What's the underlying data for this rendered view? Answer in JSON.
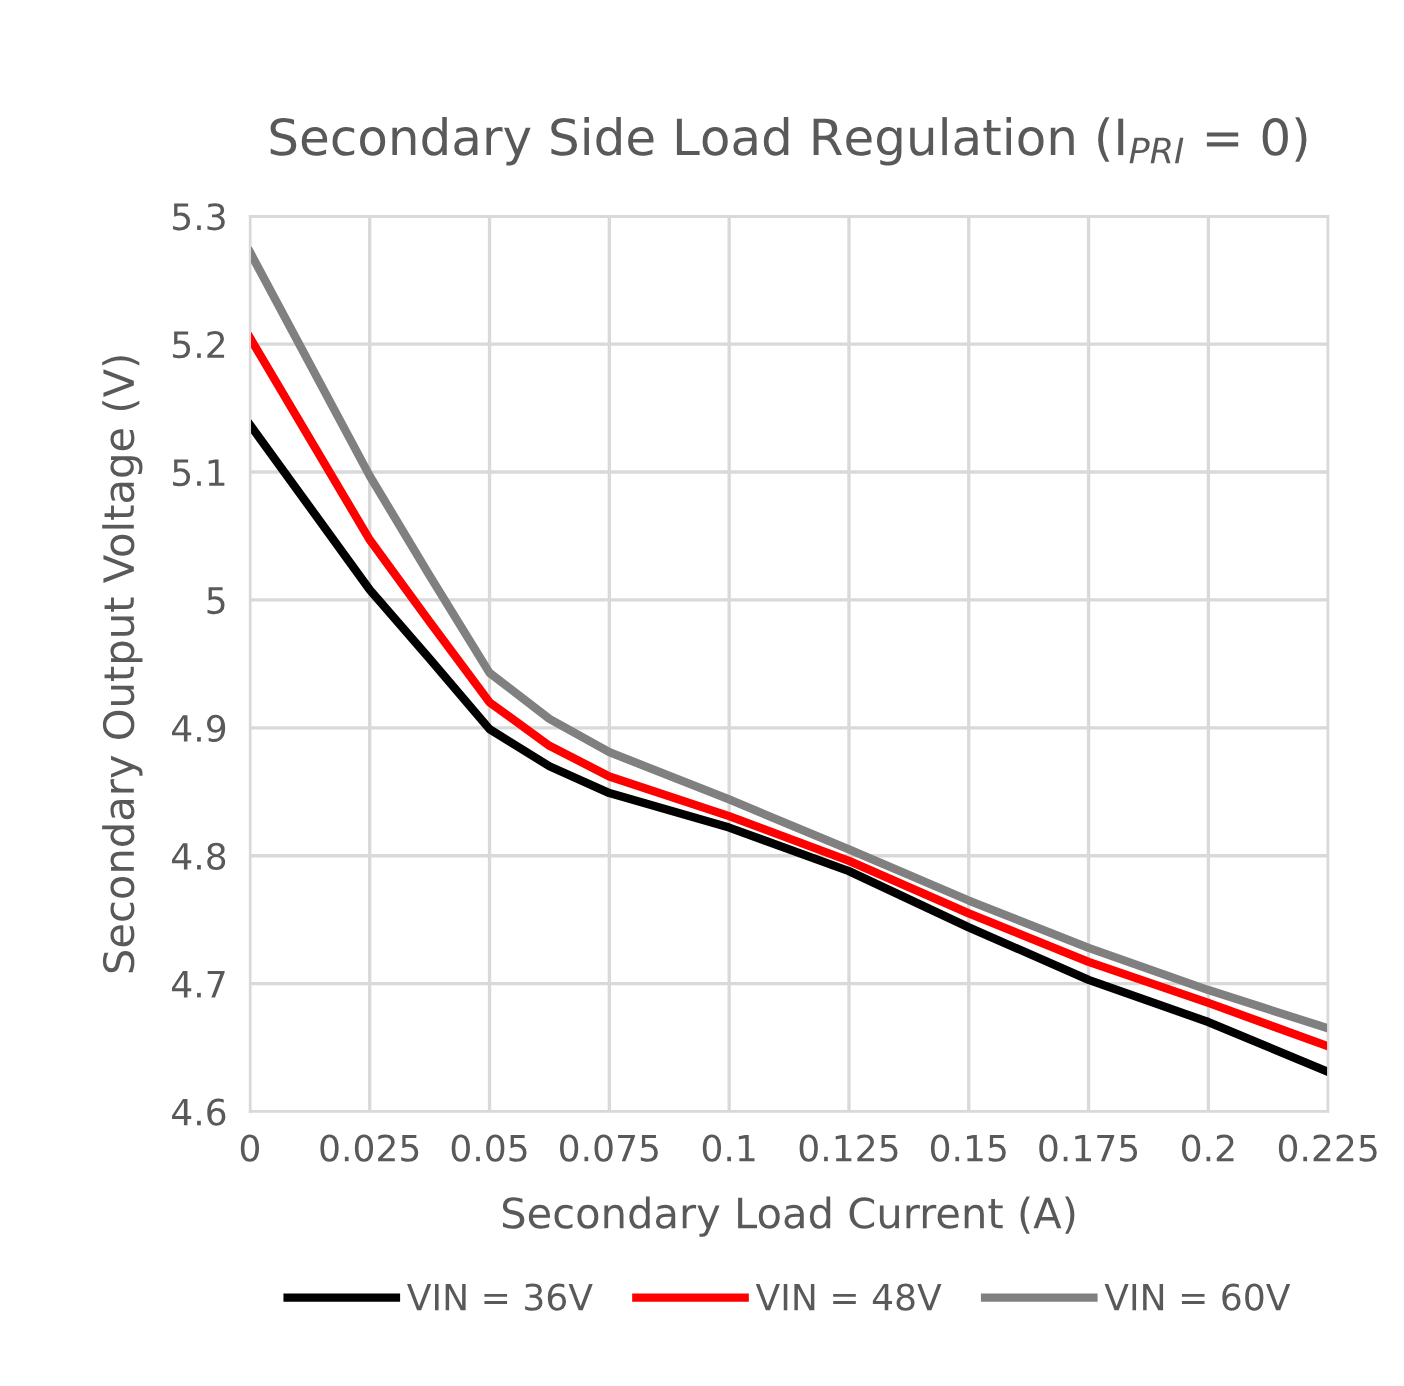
{
  "chart_data": {
    "type": "line",
    "title": "Secondary Side Load Regulation (I$_{PRI}$ = 0)",
    "xlabel": "Secondary Load Current (A)",
    "ylabel": "Secondary Output Voltage (V)",
    "x": [
      0,
      0.025,
      0.0375,
      0.05,
      0.0625,
      0.075,
      0.1,
      0.125,
      0.15,
      0.175,
      0.2,
      0.225
    ],
    "series": [
      {
        "name": "VIN = 36V",
        "color": "#000000",
        "values": [
          5.137,
          5.008,
          4.954,
          4.899,
          4.87,
          4.849,
          4.822,
          4.788,
          4.744,
          4.703,
          4.67,
          4.631
        ]
      },
      {
        "name": "VIN = 48V",
        "color": "#ff0000",
        "values": [
          5.205,
          5.047,
          4.983,
          4.92,
          4.886,
          4.862,
          4.831,
          4.796,
          4.755,
          4.717,
          4.685,
          4.651
        ]
      },
      {
        "name": "VIN = 60V",
        "color": "#808080",
        "values": [
          5.272,
          5.097,
          5.019,
          4.943,
          4.907,
          4.881,
          4.844,
          4.805,
          4.765,
          4.728,
          4.695,
          4.665
        ]
      }
    ],
    "xlim": [
      0,
      0.225
    ],
    "xticks": [
      0,
      0.025,
      0.05,
      0.075,
      0.1,
      0.125,
      0.15,
      0.175,
      0.2,
      0.225
    ],
    "ylim": [
      4.6,
      5.3
    ],
    "yticks": [
      4.6,
      4.7,
      4.8,
      4.9,
      {
        "value": 5.0,
        "label": "5"
      },
      5.1,
      5.2,
      5.3
    ],
    "grid": true,
    "legend": "bottom",
    "marker": "none",
    "line_style": "solid"
  }
}
